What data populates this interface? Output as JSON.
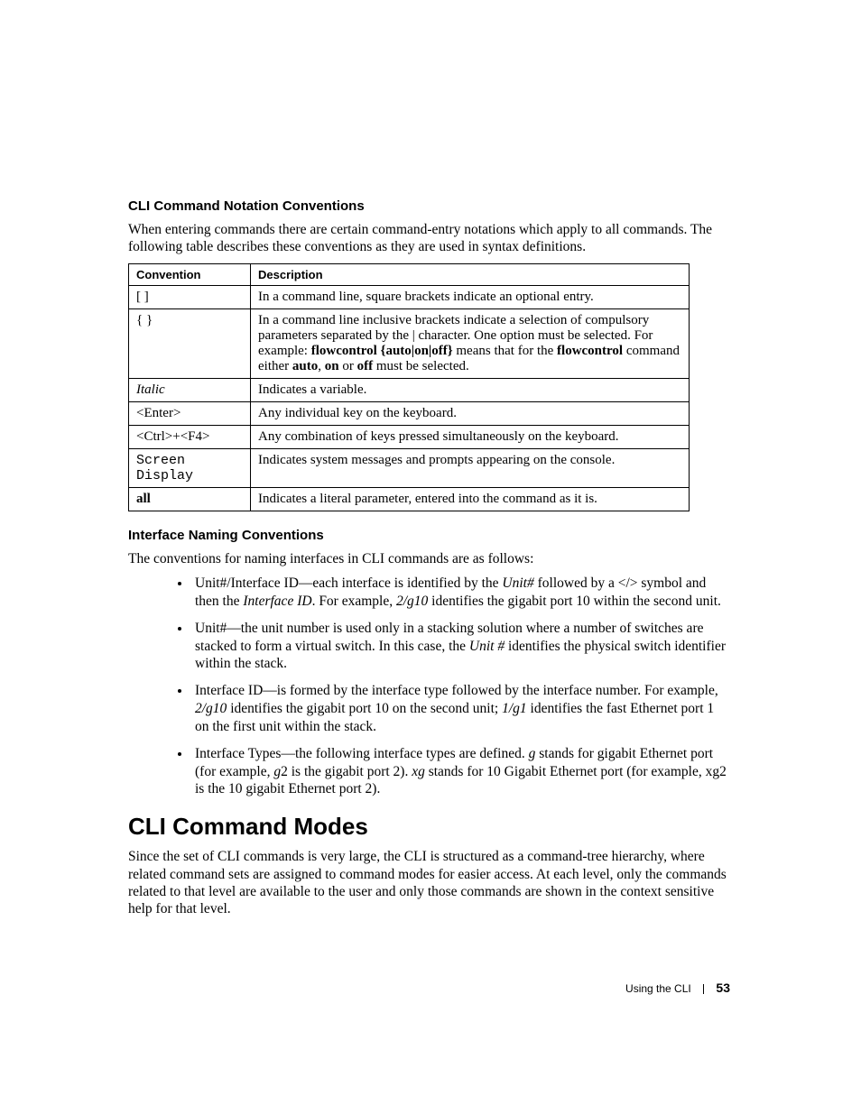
{
  "section1": {
    "heading": "CLI Command Notation Conventions",
    "intro": "When entering commands there are certain command-entry notations which apply to all commands. The following table describes these conventions as they are used in syntax definitions."
  },
  "table": {
    "header_col1": "Convention",
    "header_col2": "Description",
    "rows": {
      "r1": {
        "c1": "[ ]",
        "c2": "In a command line, square brackets indicate an optional entry."
      },
      "r2": {
        "c1": "{ }",
        "c2a": "In a command line inclusive brackets indicate a selection of compulsory parameters separated by the | character. One option must be selected. For example: ",
        "c2b": "flowcontrol {auto|on|off}",
        "c2c": " means that for the ",
        "c2d": "flowcontrol",
        "c2e": " command either ",
        "c2f": "auto",
        "c2g": ", ",
        "c2h": "on",
        "c2i": " or ",
        "c2j": "off",
        "c2k": " must be selected."
      },
      "r3": {
        "c1": "Italic",
        "c2": "Indicates a variable."
      },
      "r4": {
        "c1": "<Enter>",
        "c2": "Any individual key on the keyboard."
      },
      "r5": {
        "c1": "<Ctrl>+<F4>",
        "c2": "Any combination of keys pressed simultaneously on the keyboard."
      },
      "r6": {
        "c1": "Screen Display",
        "c2": "Indicates system messages and prompts appearing on the console."
      },
      "r7": {
        "c1": "all",
        "c2": "Indicates a literal parameter, entered into the command as it is."
      }
    }
  },
  "section2": {
    "heading": "Interface Naming Conventions",
    "intro": "The conventions for naming interfaces in CLI commands are as follows:",
    "bullets": {
      "b1": {
        "a": "Unit#/Interface ID—each interface is identified by the ",
        "b": "Unit#",
        "c": " followed by a </> symbol and then the ",
        "d": "Interface ID",
        "e": ". For example, ",
        "f": "2/g10",
        "g": " identifies the gigabit port 10 within the second unit."
      },
      "b2": {
        "a": "Unit#—the unit number is used only in a stacking solution where a number of switches are stacked to form a virtual switch. In this case, the ",
        "b": "Unit #",
        "c": " identifies the physical switch identifier within the stack."
      },
      "b3": {
        "a": "Interface ID—is formed by the interface type followed by the interface number. For example, ",
        "b": "2/g10",
        "c": " identifies the gigabit port 10 on the second unit; ",
        "d": "1/g1",
        "e": " identifies the fast Ethernet port 1 on the first unit within the stack."
      },
      "b4": {
        "a": "Interface Types—the following interface types are defined. ",
        "b": "g",
        "c": " stands for gigabit Ethernet port (for example, ",
        "d": "g",
        "e": "2 is the gigabit port 2).  ",
        "f": "xg",
        "g": " stands for 10 Gigabit Ethernet port (for example, xg2 is the 10 gigabit Ethernet port 2)."
      }
    }
  },
  "section3": {
    "heading": "CLI Command Modes",
    "para": "Since the set of CLI commands is very large, the CLI is structured as a command-tree hierarchy, where related command sets are assigned to command modes for easier access. At each level, only the commands related to that level are available to the user and only those commands are shown in the context sensitive help for that level."
  },
  "footer": {
    "label": "Using the CLI",
    "page": "53"
  }
}
